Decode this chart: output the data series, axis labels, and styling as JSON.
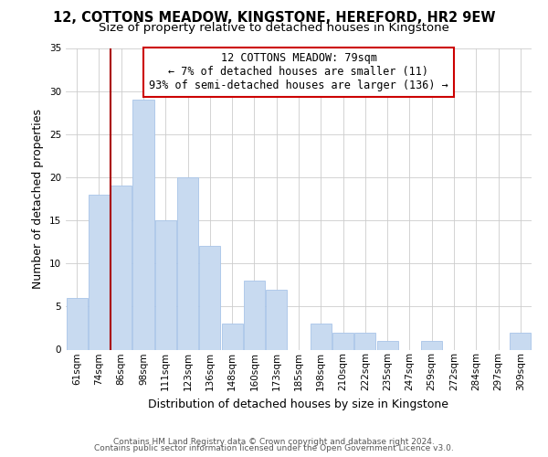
{
  "title": "12, COTTONS MEADOW, KINGSTONE, HEREFORD, HR2 9EW",
  "subtitle": "Size of property relative to detached houses in Kingstone",
  "xlabel": "Distribution of detached houses by size in Kingstone",
  "ylabel": "Number of detached properties",
  "bar_labels": [
    "61sqm",
    "74sqm",
    "86sqm",
    "98sqm",
    "111sqm",
    "123sqm",
    "136sqm",
    "148sqm",
    "160sqm",
    "173sqm",
    "185sqm",
    "198sqm",
    "210sqm",
    "222sqm",
    "235sqm",
    "247sqm",
    "259sqm",
    "272sqm",
    "284sqm",
    "297sqm",
    "309sqm"
  ],
  "bar_values": [
    6,
    18,
    19,
    29,
    15,
    20,
    12,
    3,
    8,
    7,
    0,
    3,
    2,
    2,
    1,
    0,
    1,
    0,
    0,
    0,
    2
  ],
  "bar_color": "#c8daf0",
  "bar_edge_color": "#a8c4e8",
  "marker_line_color": "#aa0000",
  "annotation_line1": "12 COTTONS MEADOW: 79sqm",
  "annotation_line2": "← 7% of detached houses are smaller (11)",
  "annotation_line3": "93% of semi-detached houses are larger (136) →",
  "annotation_box_color": "#ffffff",
  "annotation_box_edge_color": "#cc0000",
  "ylim": [
    0,
    35
  ],
  "yticks": [
    0,
    5,
    10,
    15,
    20,
    25,
    30,
    35
  ],
  "footer1": "Contains HM Land Registry data © Crown copyright and database right 2024.",
  "footer2": "Contains public sector information licensed under the Open Government Licence v3.0.",
  "bg_color": "#ffffff",
  "grid_color": "#cccccc",
  "title_fontsize": 10.5,
  "subtitle_fontsize": 9.5,
  "axis_label_fontsize": 9,
  "tick_fontsize": 7.5,
  "annotation_fontsize": 8.5,
  "footer_fontsize": 6.5
}
